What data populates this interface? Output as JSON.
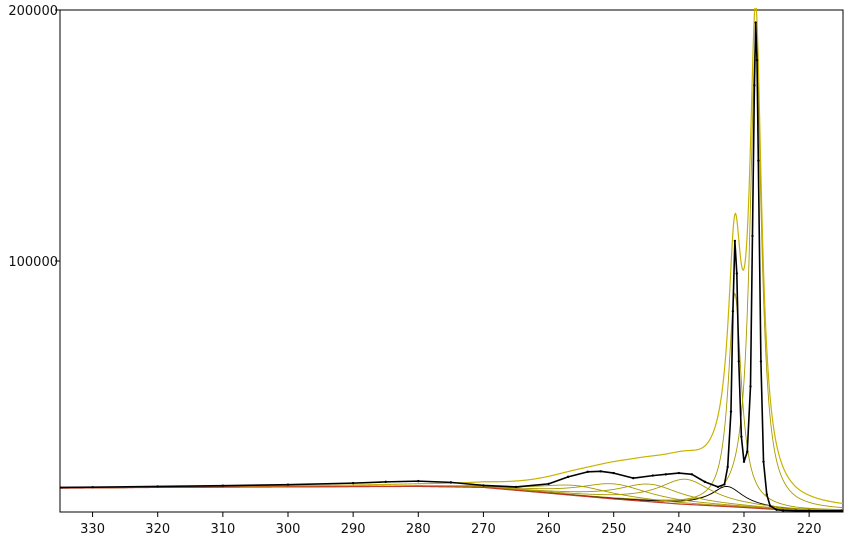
{
  "chart_data": {
    "type": "line",
    "title": "",
    "xlabel": "",
    "ylabel": "",
    "x_reversed": true,
    "xlim": [
      335,
      214.8
    ],
    "ylim": [
      0,
      200000
    ],
    "x_ticks": [
      330,
      320,
      310,
      300,
      290,
      280,
      270,
      260,
      250,
      240,
      230,
      220
    ],
    "y_ticks": [
      100000,
      200000
    ],
    "grid": false,
    "legend": "none",
    "colors": {
      "data": "#000000",
      "background_line": "#c0392b",
      "component": "#a89a00",
      "envelope": "#c8b400"
    },
    "background": {
      "x": [
        335,
        320,
        300,
        280,
        270,
        260,
        250,
        240,
        230,
        225,
        222,
        215
      ],
      "y": [
        9500,
        9800,
        10000,
        10200,
        9800,
        7500,
        5200,
        3200,
        1800,
        1000,
        600,
        500
      ]
    },
    "components": [
      {
        "center": 228.2,
        "height": 185000,
        "width": 1.1
      },
      {
        "center": 231.4,
        "height": 85000,
        "width": 1.2
      },
      {
        "center": 232.6,
        "height": 8000,
        "width": 3.0
      },
      {
        "center": 239.0,
        "height": 10000,
        "width": 5.0
      },
      {
        "center": 244.5,
        "height": 7000,
        "width": 6.0
      },
      {
        "center": 250.0,
        "height": 6000,
        "width": 6.5
      },
      {
        "center": 256.0,
        "height": 4000,
        "width": 7.0
      }
    ],
    "data_series": {
      "name": "",
      "x": [
        335,
        330,
        320,
        310,
        300,
        290,
        285,
        280,
        275,
        270,
        265,
        260,
        257,
        254,
        252,
        250,
        247,
        244,
        242,
        240,
        238,
        236,
        234,
        233,
        232.5,
        232,
        231.7,
        231.4,
        231.1,
        230.8,
        230.4,
        230,
        229.5,
        229,
        228.7,
        228.4,
        228.2,
        228,
        227.8,
        227.4,
        227,
        226.5,
        226,
        225,
        224,
        222,
        220,
        215
      ],
      "y": [
        9800,
        9900,
        10200,
        10500,
        10900,
        11500,
        12000,
        12300,
        11800,
        10600,
        10000,
        11200,
        14000,
        16000,
        16200,
        15500,
        13500,
        14500,
        15000,
        15500,
        15000,
        12000,
        10000,
        11000,
        18000,
        40000,
        80000,
        108000,
        95000,
        60000,
        30000,
        20000,
        24000,
        50000,
        110000,
        170000,
        195000,
        180000,
        140000,
        60000,
        20000,
        7000,
        2500,
        900,
        600,
        500,
        500,
        500
      ]
    }
  }
}
